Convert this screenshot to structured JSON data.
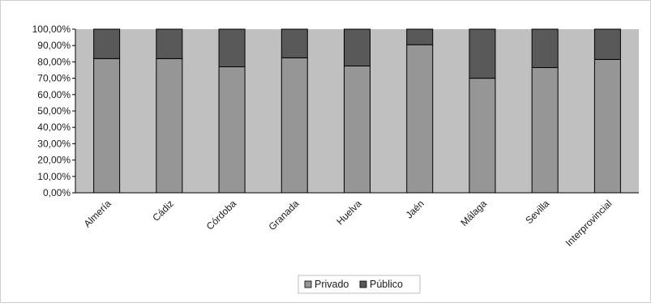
{
  "chart_data": {
    "type": "bar",
    "stacked": true,
    "percent_stacked": true,
    "categories": [
      "Almería",
      "Cádiz",
      "Córdoba",
      "Granada",
      "Huelva",
      "Jaén",
      "Málaga",
      "Sevilla",
      "Interprovincial"
    ],
    "series": [
      {
        "name": "Privado",
        "values": [
          82.0,
          82.0,
          77.0,
          82.5,
          77.5,
          90.5,
          70.0,
          76.5,
          81.5
        ]
      },
      {
        "name": "Público",
        "values": [
          18.0,
          18.0,
          23.0,
          17.5,
          22.5,
          9.5,
          30.0,
          23.5,
          18.5
        ]
      }
    ],
    "y_ticks": [
      "0,00%",
      "10,00%",
      "20,00%",
      "30,00%",
      "40,00%",
      "50,00%",
      "60,00%",
      "70,00%",
      "80,00%",
      "90,00%",
      "100,00%"
    ],
    "ylim": [
      0,
      100
    ],
    "grid": false,
    "legend_position": "bottom",
    "colors": {
      "Privado": "#969696",
      "Público": "#595959",
      "plot_background": "#c0c0c0",
      "chart_background": "#ffffff"
    },
    "title": "",
    "xlabel": "",
    "ylabel": ""
  }
}
